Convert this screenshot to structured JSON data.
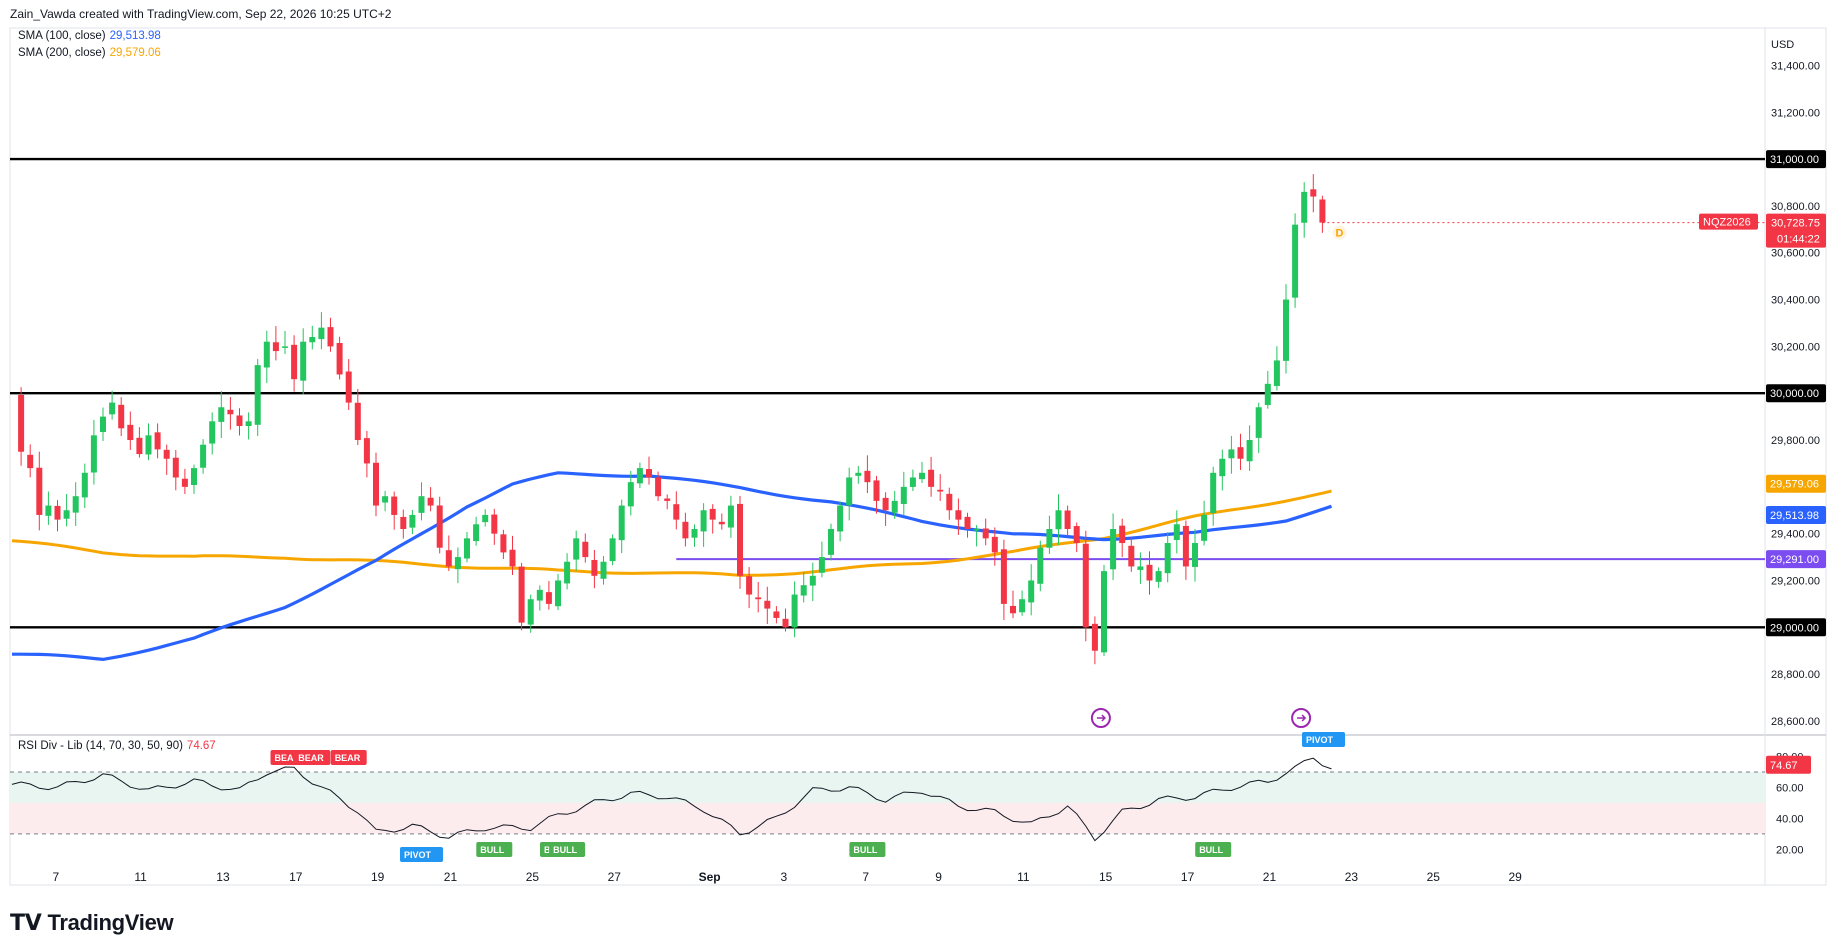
{
  "header": {
    "text": "Zain_Vawda created with TradingView.com, Sep 22, 2026 10:25 UTC+2"
  },
  "legend": {
    "sma100": {
      "label": "SMA (100, close)",
      "value": "29,513.98",
      "color": "#2962ff"
    },
    "sma200": {
      "label": "SMA (200, close)",
      "value": "29,579.06",
      "color": "#f7a600"
    },
    "rsi": {
      "label": "RSI Div - Lib (14, 70, 30, 50, 90)",
      "value": "74.67",
      "color": "#f23645"
    }
  },
  "currency": "USD",
  "ticker": {
    "symbol": "NQZ2026",
    "price": "30,728.75",
    "countdown": "01:44:22",
    "color": "#f23645"
  },
  "d_marker": "D",
  "brand": "TradingView",
  "chart_data": {
    "type": "candlestick",
    "price_axis": {
      "ticks": [
        "31,400.00",
        "31,200.00",
        "31,000.00",
        "30,800.00",
        "30,600.00",
        "30,400.00",
        "30,200.00",
        "30,000.00",
        "29,800.00",
        "29,600.00",
        "29,400.00",
        "29,200.00",
        "29,000.00",
        "28,800.00",
        "28,600.00"
      ],
      "ylim": [
        28540,
        31560
      ]
    },
    "horizontal_levels": [
      {
        "value": 31000,
        "label": "31,000.00",
        "color": "#000000"
      },
      {
        "value": 30000,
        "label": "30,000.00",
        "color": "#000000"
      },
      {
        "value": 29000,
        "label": "29,000.00",
        "color": "#000000"
      },
      {
        "value": 29291,
        "label": "29,291.00",
        "color": "#7b4cf0"
      }
    ],
    "sma_labels": [
      {
        "value": 29579.06,
        "label": "29,579.06",
        "color": "#f7a600"
      },
      {
        "value": 29513.98,
        "label": "29,513.98",
        "color": "#2962ff"
      }
    ],
    "time_axis": [
      {
        "label": "7",
        "i": 5
      },
      {
        "label": "11",
        "i": 14
      },
      {
        "label": "13",
        "i": 23
      },
      {
        "label": "17",
        "i": 31
      },
      {
        "label": "19",
        "i": 40
      },
      {
        "label": "21",
        "i": 48
      },
      {
        "label": "25",
        "i": 57
      },
      {
        "label": "27",
        "i": 66
      },
      {
        "label": "Sep",
        "i": 76
      },
      {
        "label": "3",
        "i": 85
      },
      {
        "label": "7",
        "i": 94
      },
      {
        "label": "9",
        "i": 102
      },
      {
        "label": "11",
        "i": 111
      },
      {
        "label": "15",
        "i": 120
      },
      {
        "label": "17",
        "i": 129
      },
      {
        "label": "21",
        "i": 138
      },
      {
        "label": "23",
        "i": 147
      },
      {
        "label": "25",
        "i": 156
      },
      {
        "label": "29",
        "i": 165
      }
    ],
    "close_anchors": [
      [
        0,
        29980
      ],
      [
        1,
        29750
      ],
      [
        2,
        29680
      ],
      [
        3,
        29480
      ],
      [
        4,
        29520
      ],
      [
        5,
        29460
      ],
      [
        6,
        29500
      ],
      [
        7,
        29560
      ],
      [
        8,
        29660
      ],
      [
        9,
        29820
      ],
      [
        10,
        29900
      ],
      [
        11,
        29960
      ],
      [
        12,
        29850
      ],
      [
        13,
        29800
      ],
      [
        14,
        29740
      ],
      [
        15,
        29820
      ],
      [
        16,
        29760
      ],
      [
        17,
        29720
      ],
      [
        18,
        29640
      ],
      [
        19,
        29600
      ],
      [
        20,
        29680
      ],
      [
        21,
        29780
      ],
      [
        22,
        29880
      ],
      [
        23,
        29940
      ],
      [
        24,
        29910
      ],
      [
        25,
        29860
      ],
      [
        26,
        29880
      ],
      [
        27,
        30120
      ],
      [
        28,
        30220
      ],
      [
        29,
        30180
      ],
      [
        30,
        30200
      ],
      [
        31,
        30060
      ],
      [
        32,
        30220
      ],
      [
        33,
        30240
      ],
      [
        34,
        30280
      ],
      [
        35,
        30200
      ],
      [
        36,
        30080
      ],
      [
        37,
        29960
      ],
      [
        38,
        29800
      ],
      [
        39,
        29700
      ],
      [
        40,
        29520
      ],
      [
        41,
        29560
      ],
      [
        42,
        29480
      ],
      [
        43,
        29420
      ],
      [
        44,
        29480
      ],
      [
        45,
        29560
      ],
      [
        46,
        29520
      ],
      [
        47,
        29340
      ],
      [
        48,
        29260
      ],
      [
        49,
        29300
      ],
      [
        50,
        29380
      ],
      [
        51,
        29440
      ],
      [
        52,
        29480
      ],
      [
        53,
        29400
      ],
      [
        54,
        29320
      ],
      [
        55,
        29260
      ],
      [
        56,
        29020
      ],
      [
        57,
        29120
      ],
      [
        58,
        29160
      ],
      [
        59,
        29100
      ],
      [
        60,
        29200
      ],
      [
        61,
        29280
      ],
      [
        62,
        29380
      ],
      [
        63,
        29300
      ],
      [
        64,
        29220
      ],
      [
        65,
        29280
      ],
      [
        66,
        29380
      ],
      [
        67,
        29520
      ],
      [
        68,
        29620
      ],
      [
        69,
        29680
      ],
      [
        70,
        29640
      ],
      [
        71,
        29560
      ],
      [
        72,
        29540
      ],
      [
        73,
        29460
      ],
      [
        74,
        29380
      ],
      [
        75,
        29420
      ],
      [
        76,
        29500
      ],
      [
        77,
        29460
      ],
      [
        78,
        29440
      ],
      [
        79,
        29520
      ],
      [
        80,
        29220
      ],
      [
        81,
        29140
      ],
      [
        82,
        29120
      ],
      [
        83,
        29080
      ],
      [
        84,
        29040
      ],
      [
        85,
        29000
      ],
      [
        86,
        29140
      ],
      [
        87,
        29180
      ],
      [
        88,
        29220
      ],
      [
        89,
        29300
      ],
      [
        90,
        29420
      ],
      [
        91,
        29520
      ],
      [
        92,
        29640
      ],
      [
        93,
        29660
      ],
      [
        94,
        29620
      ],
      [
        95,
        29540
      ],
      [
        96,
        29500
      ],
      [
        97,
        29540
      ],
      [
        98,
        29600
      ],
      [
        99,
        29640
      ],
      [
        100,
        29660
      ],
      [
        101,
        29600
      ],
      [
        102,
        29580
      ],
      [
        103,
        29500
      ],
      [
        104,
        29460
      ],
      [
        105,
        29420
      ],
      [
        106,
        29420
      ],
      [
        107,
        29380
      ],
      [
        108,
        29320
      ],
      [
        109,
        29100
      ],
      [
        110,
        29060
      ],
      [
        111,
        29120
      ],
      [
        112,
        29200
      ],
      [
        113,
        29340
      ],
      [
        114,
        29420
      ],
      [
        115,
        29500
      ],
      [
        116,
        29420
      ],
      [
        117,
        29360
      ],
      [
        118,
        29000
      ],
      [
        119,
        28900
      ],
      [
        120,
        29240
      ],
      [
        121,
        29420
      ],
      [
        122,
        29360
      ],
      [
        123,
        29260
      ],
      [
        124,
        29260
      ],
      [
        125,
        29200
      ],
      [
        126,
        29240
      ],
      [
        127,
        29360
      ],
      [
        128,
        29440
      ],
      [
        129,
        29260
      ],
      [
        130,
        29360
      ],
      [
        131,
        29480
      ],
      [
        132,
        29660
      ],
      [
        133,
        29720
      ],
      [
        134,
        29760
      ],
      [
        135,
        29720
      ],
      [
        136,
        29800
      ],
      [
        137,
        29940
      ],
      [
        138,
        30040
      ],
      [
        139,
        30140
      ],
      [
        140,
        30400
      ],
      [
        141,
        30720
      ],
      [
        142,
        30860
      ],
      [
        143,
        30840
      ],
      [
        144,
        30728.75
      ]
    ],
    "sma100_anchors": [
      [
        0,
        28885
      ],
      [
        10,
        28865
      ],
      [
        20,
        28950
      ],
      [
        30,
        29090
      ],
      [
        40,
        29280
      ],
      [
        50,
        29520
      ],
      [
        55,
        29610
      ],
      [
        60,
        29655
      ],
      [
        70,
        29650
      ],
      [
        80,
        29595
      ],
      [
        90,
        29535
      ],
      [
        100,
        29455
      ],
      [
        110,
        29395
      ],
      [
        120,
        29380
      ],
      [
        130,
        29400
      ],
      [
        140,
        29460
      ],
      [
        145,
        29514
      ]
    ],
    "sma200_anchors": [
      [
        0,
        29370
      ],
      [
        10,
        29320
      ],
      [
        20,
        29300
      ],
      [
        30,
        29300
      ],
      [
        40,
        29280
      ],
      [
        50,
        29260
      ],
      [
        60,
        29240
      ],
      [
        70,
        29235
      ],
      [
        80,
        29220
      ],
      [
        90,
        29245
      ],
      [
        100,
        29275
      ],
      [
        110,
        29320
      ],
      [
        120,
        29385
      ],
      [
        130,
        29470
      ],
      [
        140,
        29545
      ],
      [
        145,
        29579
      ]
    ],
    "rsi_panel": {
      "ticks": [
        "80.00",
        "60.00",
        "40.00",
        "20.00"
      ],
      "ylim": [
        15,
        92
      ],
      "levels": [
        70,
        50,
        30
      ],
      "current": "74.67",
      "anchors": [
        [
          0,
          62
        ],
        [
          5,
          60
        ],
        [
          10,
          68
        ],
        [
          15,
          58
        ],
        [
          20,
          64
        ],
        [
          25,
          58
        ],
        [
          28,
          70
        ],
        [
          31,
          72
        ],
        [
          34,
          60
        ],
        [
          38,
          45
        ],
        [
          40,
          31
        ],
        [
          44,
          35
        ],
        [
          48,
          28
        ],
        [
          52,
          34
        ],
        [
          57,
          34
        ],
        [
          60,
          42
        ],
        [
          64,
          50
        ],
        [
          68,
          56
        ],
        [
          72,
          54
        ],
        [
          76,
          46
        ],
        [
          80,
          30
        ],
        [
          84,
          40
        ],
        [
          88,
          58
        ],
        [
          92,
          60
        ],
        [
          96,
          52
        ],
        [
          100,
          58
        ],
        [
          104,
          48
        ],
        [
          108,
          44
        ],
        [
          112,
          36
        ],
        [
          116,
          48
        ],
        [
          119,
          27
        ],
        [
          122,
          44
        ],
        [
          126,
          52
        ],
        [
          130,
          54
        ],
        [
          134,
          60
        ],
        [
          138,
          64
        ],
        [
          141,
          72
        ],
        [
          143,
          80
        ],
        [
          145,
          72
        ]
      ],
      "signals": [
        {
          "text": "BEA",
          "i": 30,
          "type": "bear"
        },
        {
          "text": "BEAR",
          "i": 33,
          "type": "bear"
        },
        {
          "text": "BEAR",
          "i": 37,
          "type": "bear"
        },
        {
          "text": "PIVOT",
          "i": 45,
          "type": "pivot-bottom"
        },
        {
          "text": "BULL",
          "i": 53,
          "type": "bull"
        },
        {
          "text": "BULL",
          "i": 60,
          "type": "bull"
        },
        {
          "text": "BULL",
          "i": 61,
          "type": "bull"
        },
        {
          "text": "BULL",
          "i": 94,
          "type": "bull"
        },
        {
          "text": "BULL",
          "i": 132,
          "type": "bull"
        },
        {
          "text": "PIVOT",
          "i": 158,
          "type": "pivot-top"
        }
      ]
    }
  },
  "colors": {
    "up": "#089981",
    "upBody": "#22c55e",
    "down": "#f23645",
    "grid": "#e0e3eb",
    "axisText": "#131722"
  }
}
